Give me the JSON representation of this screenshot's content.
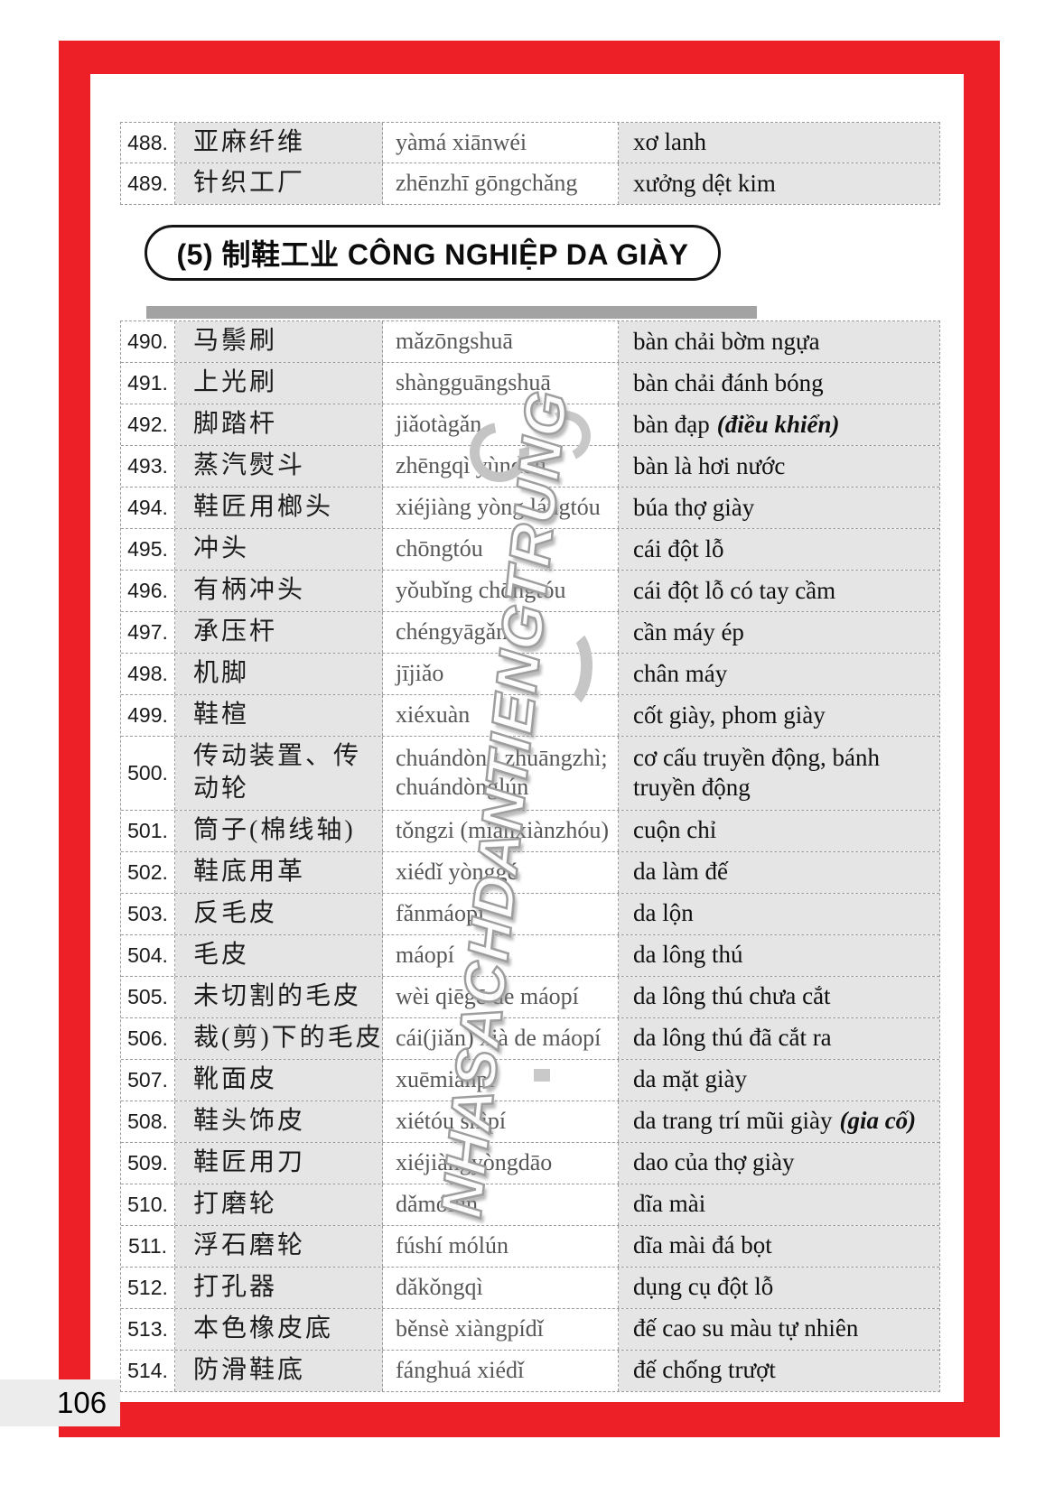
{
  "page": {
    "number": "106"
  },
  "colors": {
    "frame_red": "#ee2027",
    "row_gray": "#e5e5e5",
    "divider_gray": "#a3a3a3",
    "pinyin_gray": "#575757",
    "watermark_gray": "#9e9e9e"
  },
  "watermark": {
    "text": "NHASACHDANTIENGTRUNG"
  },
  "section_header": {
    "label": "(5) 制鞋工业 CÔNG NGHIỆP DA GIÀY"
  },
  "top_table": {
    "rows": [
      {
        "no": "488.",
        "zh": "亚麻纤维",
        "pinyin": "yàmá xiānwéi",
        "vi": "xơ lanh",
        "vi_note": ""
      },
      {
        "no": "489.",
        "zh": "针织工厂",
        "pinyin": "zhēnzhī gōngchǎng",
        "vi": "xưởng dệt kim",
        "vi_note": ""
      }
    ]
  },
  "main_table": {
    "rows": [
      {
        "no": "490.",
        "zh": "马鬃刷",
        "pinyin": "mǎzōngshuā",
        "vi": "bàn chải bờm ngựa",
        "vi_note": ""
      },
      {
        "no": "491.",
        "zh": "上光刷",
        "pinyin": "shàngguāngshuā",
        "vi": "bàn chải đánh bóng",
        "vi_note": ""
      },
      {
        "no": "492.",
        "zh": "脚踏杆",
        "pinyin": "jiǎotàgǎn",
        "vi": "bàn đạp",
        "vi_note": "(điều khiển)"
      },
      {
        "no": "493.",
        "zh": "蒸汽熨斗",
        "pinyin": "zhēngqì yùndǒu",
        "vi": "bàn là hơi nước",
        "vi_note": ""
      },
      {
        "no": "494.",
        "zh": "鞋匠用榔头",
        "pinyin": "xiéjiàng yòng lángtóu",
        "vi": "búa thợ giày",
        "vi_note": ""
      },
      {
        "no": "495.",
        "zh": "冲头",
        "pinyin": "chōngtóu",
        "vi": "cái đột lỗ",
        "vi_note": ""
      },
      {
        "no": "496.",
        "zh": "有柄冲头",
        "pinyin": "yǒubǐng chōngtóu",
        "vi": "cái đột lỗ có tay cầm",
        "vi_note": ""
      },
      {
        "no": "497.",
        "zh": "承压杆",
        "pinyin": "chéngyāgǎn",
        "vi": "cần máy ép",
        "vi_note": ""
      },
      {
        "no": "498.",
        "zh": "机脚",
        "pinyin": "jījiǎo",
        "vi": "chân máy",
        "vi_note": ""
      },
      {
        "no": "499.",
        "zh": "鞋楦",
        "pinyin": "xiéxuàn",
        "vi": "cốt giày, phom giày",
        "vi_note": ""
      },
      {
        "no": "500.",
        "zh": "传动装置、传\n动轮",
        "pinyin": "chuándòng zhuāngzhì;\nchuándònglún",
        "vi": "cơ cấu truyền động, bánh\ntruyền động",
        "vi_note": ""
      },
      {
        "no": "501.",
        "zh": "筒子(棉线轴)",
        "pinyin": "tǒngzi (miánxiànzhóu)",
        "vi": "cuộn chỉ",
        "vi_note": ""
      },
      {
        "no": "502.",
        "zh": "鞋底用革",
        "pinyin": "xiédǐ yònggé",
        "vi": "da làm đế",
        "vi_note": ""
      },
      {
        "no": "503.",
        "zh": "反毛皮",
        "pinyin": "fǎnmáopí",
        "vi": "da lộn",
        "vi_note": ""
      },
      {
        "no": "504.",
        "zh": "毛皮",
        "pinyin": "máopí",
        "vi": "da lông thú",
        "vi_note": ""
      },
      {
        "no": "505.",
        "zh": "未切割的毛皮",
        "pinyin": "wèi qiēgē de máopí",
        "vi": "da lông thú chưa cắt",
        "vi_note": ""
      },
      {
        "no": "506.",
        "zh": "裁(剪)下的毛皮",
        "pinyin": "cái(jiǎn) xià de máopí",
        "vi": "da lông thú đã cắt ra",
        "vi_note": ""
      },
      {
        "no": "507.",
        "zh": "靴面皮",
        "pinyin": "xuēmiànpí",
        "vi": "da mặt giày",
        "vi_note": ""
      },
      {
        "no": "508.",
        "zh": "鞋头饰皮",
        "pinyin": "xiétóu shìpí",
        "vi": "da trang trí mũi giày",
        "vi_note": "(gia cố)"
      },
      {
        "no": "509.",
        "zh": "鞋匠用刀",
        "pinyin": "xiéjiàngyòngdāo",
        "vi": "dao của thợ giày",
        "vi_note": ""
      },
      {
        "no": "510.",
        "zh": "打磨轮",
        "pinyin": "dǎmólún",
        "vi": "dĩa mài",
        "vi_note": ""
      },
      {
        "no": "511.",
        "zh": "浮石磨轮",
        "pinyin": "fúshí mólún",
        "vi": "dĩa mài đá bọt",
        "vi_note": ""
      },
      {
        "no": "512.",
        "zh": "打孔器",
        "pinyin": "dǎkǒngqì",
        "vi": "dụng cụ đột lỗ",
        "vi_note": ""
      },
      {
        "no": "513.",
        "zh": "本色橡皮底",
        "pinyin": "běnsè xiàngpídǐ",
        "vi": "đế cao su màu tự nhiên",
        "vi_note": ""
      },
      {
        "no": "514.",
        "zh": "防滑鞋底",
        "pinyin": "fánghuá xiédǐ",
        "vi": "đế chống trượt",
        "vi_note": ""
      }
    ]
  }
}
